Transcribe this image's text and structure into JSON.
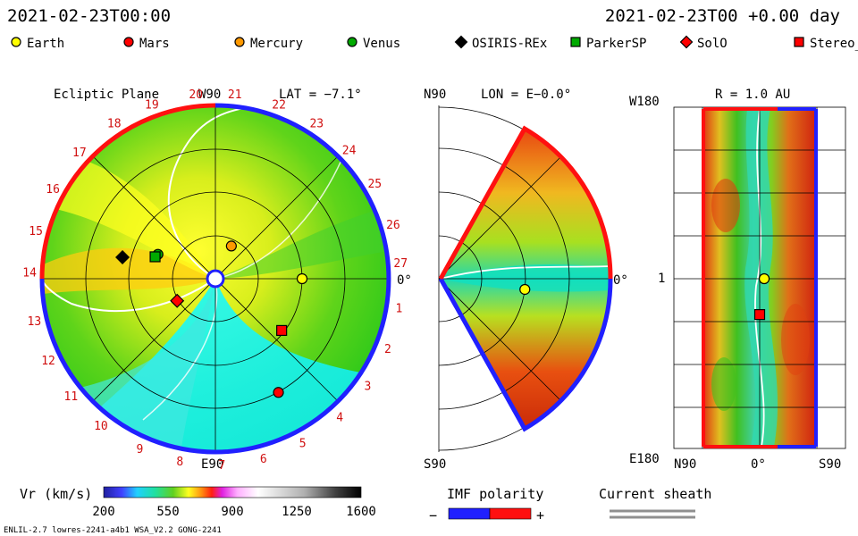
{
  "header": {
    "left_time": "2021-02-23T00:00",
    "right_time": "2021-02-23T00 +0.00 day"
  },
  "legend": [
    {
      "name": "Earth",
      "marker": "circle",
      "color": "#ffff00"
    },
    {
      "name": "Mars",
      "marker": "circle",
      "color": "#ff0000"
    },
    {
      "name": "Mercury",
      "marker": "circle",
      "color": "#ff9900"
    },
    {
      "name": "Venus",
      "marker": "circle",
      "color": "#00aa00"
    },
    {
      "name": "OSIRIS-REx",
      "marker": "diamond",
      "color": "#000000"
    },
    {
      "name": "ParkerSP",
      "marker": "square",
      "color": "#00aa00"
    },
    {
      "name": "SolO",
      "marker": "diamond",
      "color": "#ff0000"
    },
    {
      "name": "Stereo_",
      "marker": "square",
      "color": "#ff0000"
    }
  ],
  "chart_data": [
    {
      "type": "polar-contour",
      "panel": "ecliptic",
      "title": "Ecliptic Plane",
      "center_label": "W90",
      "lat_label": "LAT = −7.1°",
      "bottom_label": "E90",
      "right_label": "0°",
      "carrington_ticks": [
        {
          "label": "20",
          "angle_deg": 96
        },
        {
          "label": "21",
          "angle_deg": 84
        },
        {
          "label": "22",
          "angle_deg": 70
        },
        {
          "label": "23",
          "angle_deg": 57
        },
        {
          "label": "24",
          "angle_deg": 44
        },
        {
          "label": "25",
          "angle_deg": 31
        },
        {
          "label": "26",
          "angle_deg": 17
        },
        {
          "label": "27",
          "angle_deg": 5
        },
        {
          "label": "1",
          "angle_deg": -9
        },
        {
          "label": "2",
          "angle_deg": -22
        },
        {
          "label": "3",
          "angle_deg": -35
        },
        {
          "label": "4",
          "angle_deg": -48
        },
        {
          "label": "5",
          "angle_deg": -62
        },
        {
          "label": "6",
          "angle_deg": -75
        },
        {
          "label": "7",
          "angle_deg": -88
        },
        {
          "label": "8",
          "angle_deg": -101
        },
        {
          "label": "9",
          "angle_deg": -114
        },
        {
          "label": "10",
          "angle_deg": -128
        },
        {
          "label": "11",
          "angle_deg": -141
        },
        {
          "label": "12",
          "angle_deg": -154
        },
        {
          "label": "13",
          "angle_deg": -167
        },
        {
          "label": "14",
          "angle_deg": 178
        },
        {
          "label": "15",
          "angle_deg": 165
        },
        {
          "label": "16",
          "angle_deg": 151
        },
        {
          "label": "17",
          "angle_deg": 137
        },
        {
          "label": "18",
          "angle_deg": 123
        },
        {
          "label": "19",
          "angle_deg": 110
        }
      ],
      "bodies": [
        {
          "name": "Earth",
          "marker": "circle",
          "color": "#ffff00",
          "r_au": 1.0,
          "angle_deg": 0
        },
        {
          "name": "Mars",
          "marker": "circle",
          "color": "#ff0000",
          "r_au": 1.5,
          "angle_deg": -61
        },
        {
          "name": "Mercury",
          "marker": "circle",
          "color": "#ff9900",
          "r_au": 0.42,
          "angle_deg": 64
        },
        {
          "name": "Venus",
          "marker": "circle",
          "color": "#00aa00",
          "r_au": 0.72,
          "angle_deg": 157
        },
        {
          "name": "OSIRIS-REx",
          "marker": "diamond",
          "color": "#000000",
          "r_au": 1.1,
          "angle_deg": 167
        },
        {
          "name": "ParkerSP",
          "marker": "square",
          "color": "#00aa00",
          "r_au": 0.74,
          "angle_deg": 160
        },
        {
          "name": "SolO",
          "marker": "diamond",
          "color": "#ff0000",
          "r_au": 0.51,
          "angle_deg": -150
        },
        {
          "name": "Stereo_",
          "marker": "square",
          "color": "#ff0000",
          "r_au": 0.97,
          "angle_deg": -38
        }
      ]
    },
    {
      "type": "polar-contour",
      "panel": "meridional",
      "lon_label": "LON = E−0.0°",
      "top_label": "N90",
      "bottom_label": "S90",
      "right_label": "0°",
      "bodies": [
        {
          "name": "Earth",
          "marker": "circle",
          "color": "#ffff00",
          "r_au": 1.0,
          "lat_deg": -7.1
        }
      ]
    },
    {
      "type": "heatmap",
      "panel": "synoptic",
      "r_label": "R = 1.0 AU",
      "top_left_label": "W180",
      "bottom_left_label": "E180",
      "x_ticks": [
        "N90",
        "0°",
        "S90"
      ],
      "y_tick": "1",
      "bodies": [
        {
          "name": "Earth",
          "marker": "circle",
          "color": "#ffff00",
          "lat_deg": -7.1,
          "lon_deg": 0
        },
        {
          "name": "Stereo_",
          "marker": "square",
          "color": "#ff0000",
          "lat_deg": 0,
          "lon_deg": -38
        }
      ]
    }
  ],
  "colorbar": {
    "label": "Vr (km/s)",
    "ticks": [
      "200",
      "550",
      "900",
      "1250",
      "1600"
    ],
    "min": 200,
    "max": 1600
  },
  "imf": {
    "label": "IMF polarity",
    "minus": "−",
    "plus": "+"
  },
  "sheath": {
    "label": "Current sheath"
  },
  "footer": {
    "left": "ENLIL-2.7 lowres-2241-a4b1 WSA_V2.2 GONG-2241"
  }
}
